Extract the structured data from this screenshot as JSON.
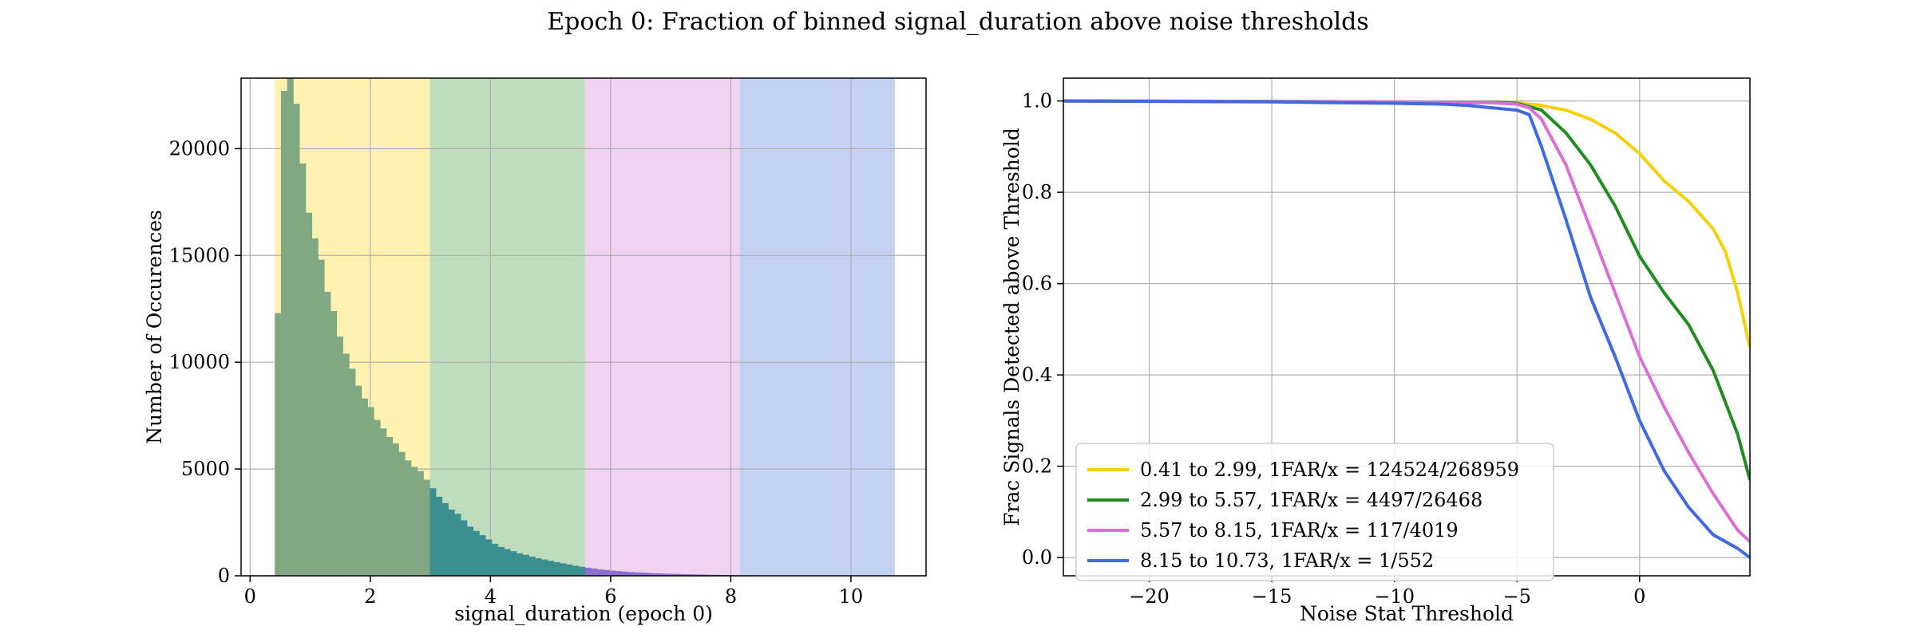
{
  "figure": {
    "title": "Epoch 0: Fraction of binned signal_duration above noise thresholds"
  },
  "chart_data": [
    {
      "type": "histogram",
      "xlabel": "signal_duration (epoch 0)",
      "ylabel": "Number of Occurences",
      "xlim": [
        -0.15,
        11.25
      ],
      "ylim": [
        0,
        23300
      ],
      "xticks": [
        0,
        2,
        4,
        6,
        8,
        10
      ],
      "yticks": [
        0,
        5000,
        10000,
        15000,
        20000
      ],
      "grid": true,
      "bin_start": 0.41,
      "bin_width": 0.1032,
      "counts": [
        12300,
        22700,
        23300,
        22100,
        19300,
        17000,
        15800,
        14800,
        13300,
        12400,
        11200,
        10400,
        9700,
        8900,
        8300,
        7900,
        7300,
        6900,
        6500,
        6200,
        5800,
        5400,
        5100,
        4900,
        4500,
        4100,
        3700,
        3400,
        3100,
        2900,
        2600,
        2300,
        2100,
        1900,
        1700,
        1500,
        1350,
        1250,
        1150,
        1050,
        980,
        900,
        820,
        760,
        700,
        640,
        580,
        530,
        470,
        420,
        380,
        340,
        300,
        270,
        240,
        215,
        195,
        175,
        160,
        145,
        130,
        118,
        108,
        98,
        90,
        82,
        74,
        67,
        60,
        54,
        48,
        43,
        38,
        34,
        30,
        27,
        24,
        21,
        18,
        15
      ],
      "bands": [
        {
          "from": 0.41,
          "to": 2.99,
          "color": "#fff2b0"
        },
        {
          "from": 2.99,
          "to": 5.57,
          "color": "#bfdcbd"
        },
        {
          "from": 5.57,
          "to": 8.15,
          "color": "#f1d2f1"
        },
        {
          "from": 8.15,
          "to": 10.73,
          "color": "#c5d1f3"
        }
      ],
      "bar_colors": [
        "#7fa883",
        "#3c8f90",
        "#8b6fd0",
        "#4a6bd8"
      ]
    },
    {
      "type": "line",
      "xlabel": "Noise Stat Threshold",
      "ylabel": "Frac Signals Detected above Threshold",
      "xlim": [
        -23.5,
        4.5
      ],
      "ylim": [
        -0.04,
        1.05
      ],
      "xticks": [
        -20,
        -15,
        -10,
        -5,
        0
      ],
      "xtick_labels": [
        "−20",
        "−15",
        "−10",
        "−5",
        "0"
      ],
      "yticks": [
        0.0,
        0.2,
        0.4,
        0.6,
        0.8,
        1.0
      ],
      "ytick_labels": [
        "0.0",
        "0.2",
        "0.4",
        "0.6",
        "0.8",
        "1.0"
      ],
      "grid": true,
      "legend_position": "lower-left",
      "series": [
        {
          "name": "0.41 to 2.99, 1FAR/x = 124524/268959",
          "color": "#f5d10a",
          "x": [
            -23.5,
            -15,
            -10,
            -6,
            -5,
            -4,
            -3,
            -2,
            -1,
            0,
            1,
            2,
            3,
            3.5,
            4,
            4.5
          ],
          "y": [
            1.0,
            0.999,
            0.998,
            0.997,
            0.996,
            0.99,
            0.98,
            0.96,
            0.93,
            0.885,
            0.825,
            0.78,
            0.72,
            0.67,
            0.58,
            0.46
          ]
        },
        {
          "name": "2.99 to 5.57, 1FAR/x = 4497/26468",
          "color": "#228b22",
          "x": [
            -23.5,
            -15,
            -10,
            -6,
            -5,
            -4,
            -3,
            -2,
            -1,
            0,
            1,
            2,
            3,
            4,
            4.5
          ],
          "y": [
            1.0,
            0.999,
            0.998,
            0.997,
            0.995,
            0.98,
            0.93,
            0.86,
            0.77,
            0.66,
            0.58,
            0.51,
            0.41,
            0.27,
            0.17
          ]
        },
        {
          "name": "5.57 to 8.15, 1FAR/x = 117/4019",
          "color": "#da70d6",
          "x": [
            -23.5,
            -15,
            -10,
            -6,
            -5,
            -4.5,
            -4,
            -3,
            -2,
            -1,
            0,
            1,
            2,
            3,
            4,
            4.5
          ],
          "y": [
            1.0,
            0.999,
            0.998,
            0.996,
            0.993,
            0.985,
            0.96,
            0.86,
            0.72,
            0.58,
            0.44,
            0.33,
            0.23,
            0.14,
            0.06,
            0.035
          ]
        },
        {
          "name": "8.15 to 10.73, 1FAR/x = 1/552",
          "color": "#4169e1",
          "x": [
            -23.5,
            -15,
            -10,
            -8,
            -7,
            -6,
            -5,
            -4.5,
            -4,
            -3,
            -2,
            -1,
            0,
            1,
            2,
            3,
            4,
            4.5
          ],
          "y": [
            1.0,
            0.998,
            0.995,
            0.993,
            0.99,
            0.985,
            0.98,
            0.97,
            0.9,
            0.74,
            0.57,
            0.44,
            0.3,
            0.19,
            0.11,
            0.05,
            0.02,
            0.0
          ]
        }
      ]
    }
  ]
}
